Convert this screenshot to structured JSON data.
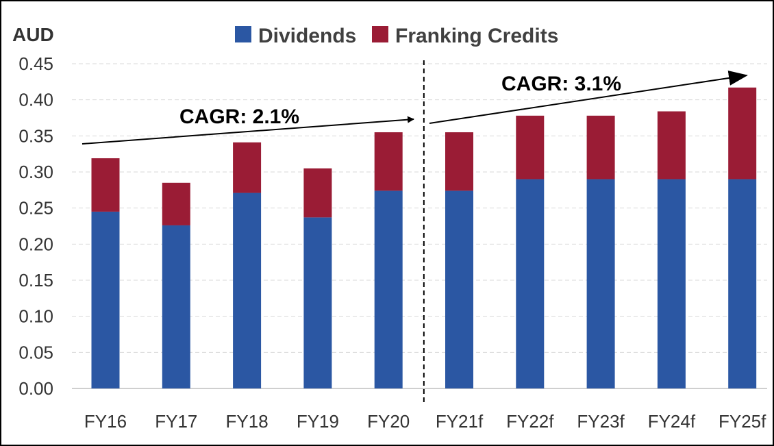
{
  "chart_data": {
    "type": "bar",
    "stacked": true,
    "ylabel": "AUD",
    "ylim": [
      0,
      0.45
    ],
    "y_ticks": [
      "0.00",
      "0.05",
      "0.10",
      "0.15",
      "0.20",
      "0.25",
      "0.30",
      "0.35",
      "0.40",
      "0.45"
    ],
    "grid": true,
    "legend_position": "top",
    "categories": [
      "FY16",
      "FY17",
      "FY18",
      "FY19",
      "FY20",
      "FY21f",
      "FY22f",
      "FY23f",
      "FY24f",
      "FY25f"
    ],
    "series": [
      {
        "name": "Dividends",
        "color": "#2b57a3",
        "values": [
          0.245,
          0.226,
          0.271,
          0.237,
          0.274,
          0.274,
          0.29,
          0.29,
          0.29,
          0.29
        ]
      },
      {
        "name": "Franking Credits",
        "color": "#9a1c35",
        "values": [
          0.074,
          0.059,
          0.07,
          0.068,
          0.081,
          0.081,
          0.088,
          0.088,
          0.094,
          0.127
        ]
      }
    ],
    "annotations": [
      {
        "text": "CAGR:  2.1%",
        "from_category": "FY16",
        "to_category": "FY20"
      },
      {
        "text": "CAGR:  3.1%",
        "from_category": "FY21f",
        "to_category": "FY25f"
      }
    ],
    "divider_between": [
      "FY20",
      "FY21f"
    ]
  }
}
